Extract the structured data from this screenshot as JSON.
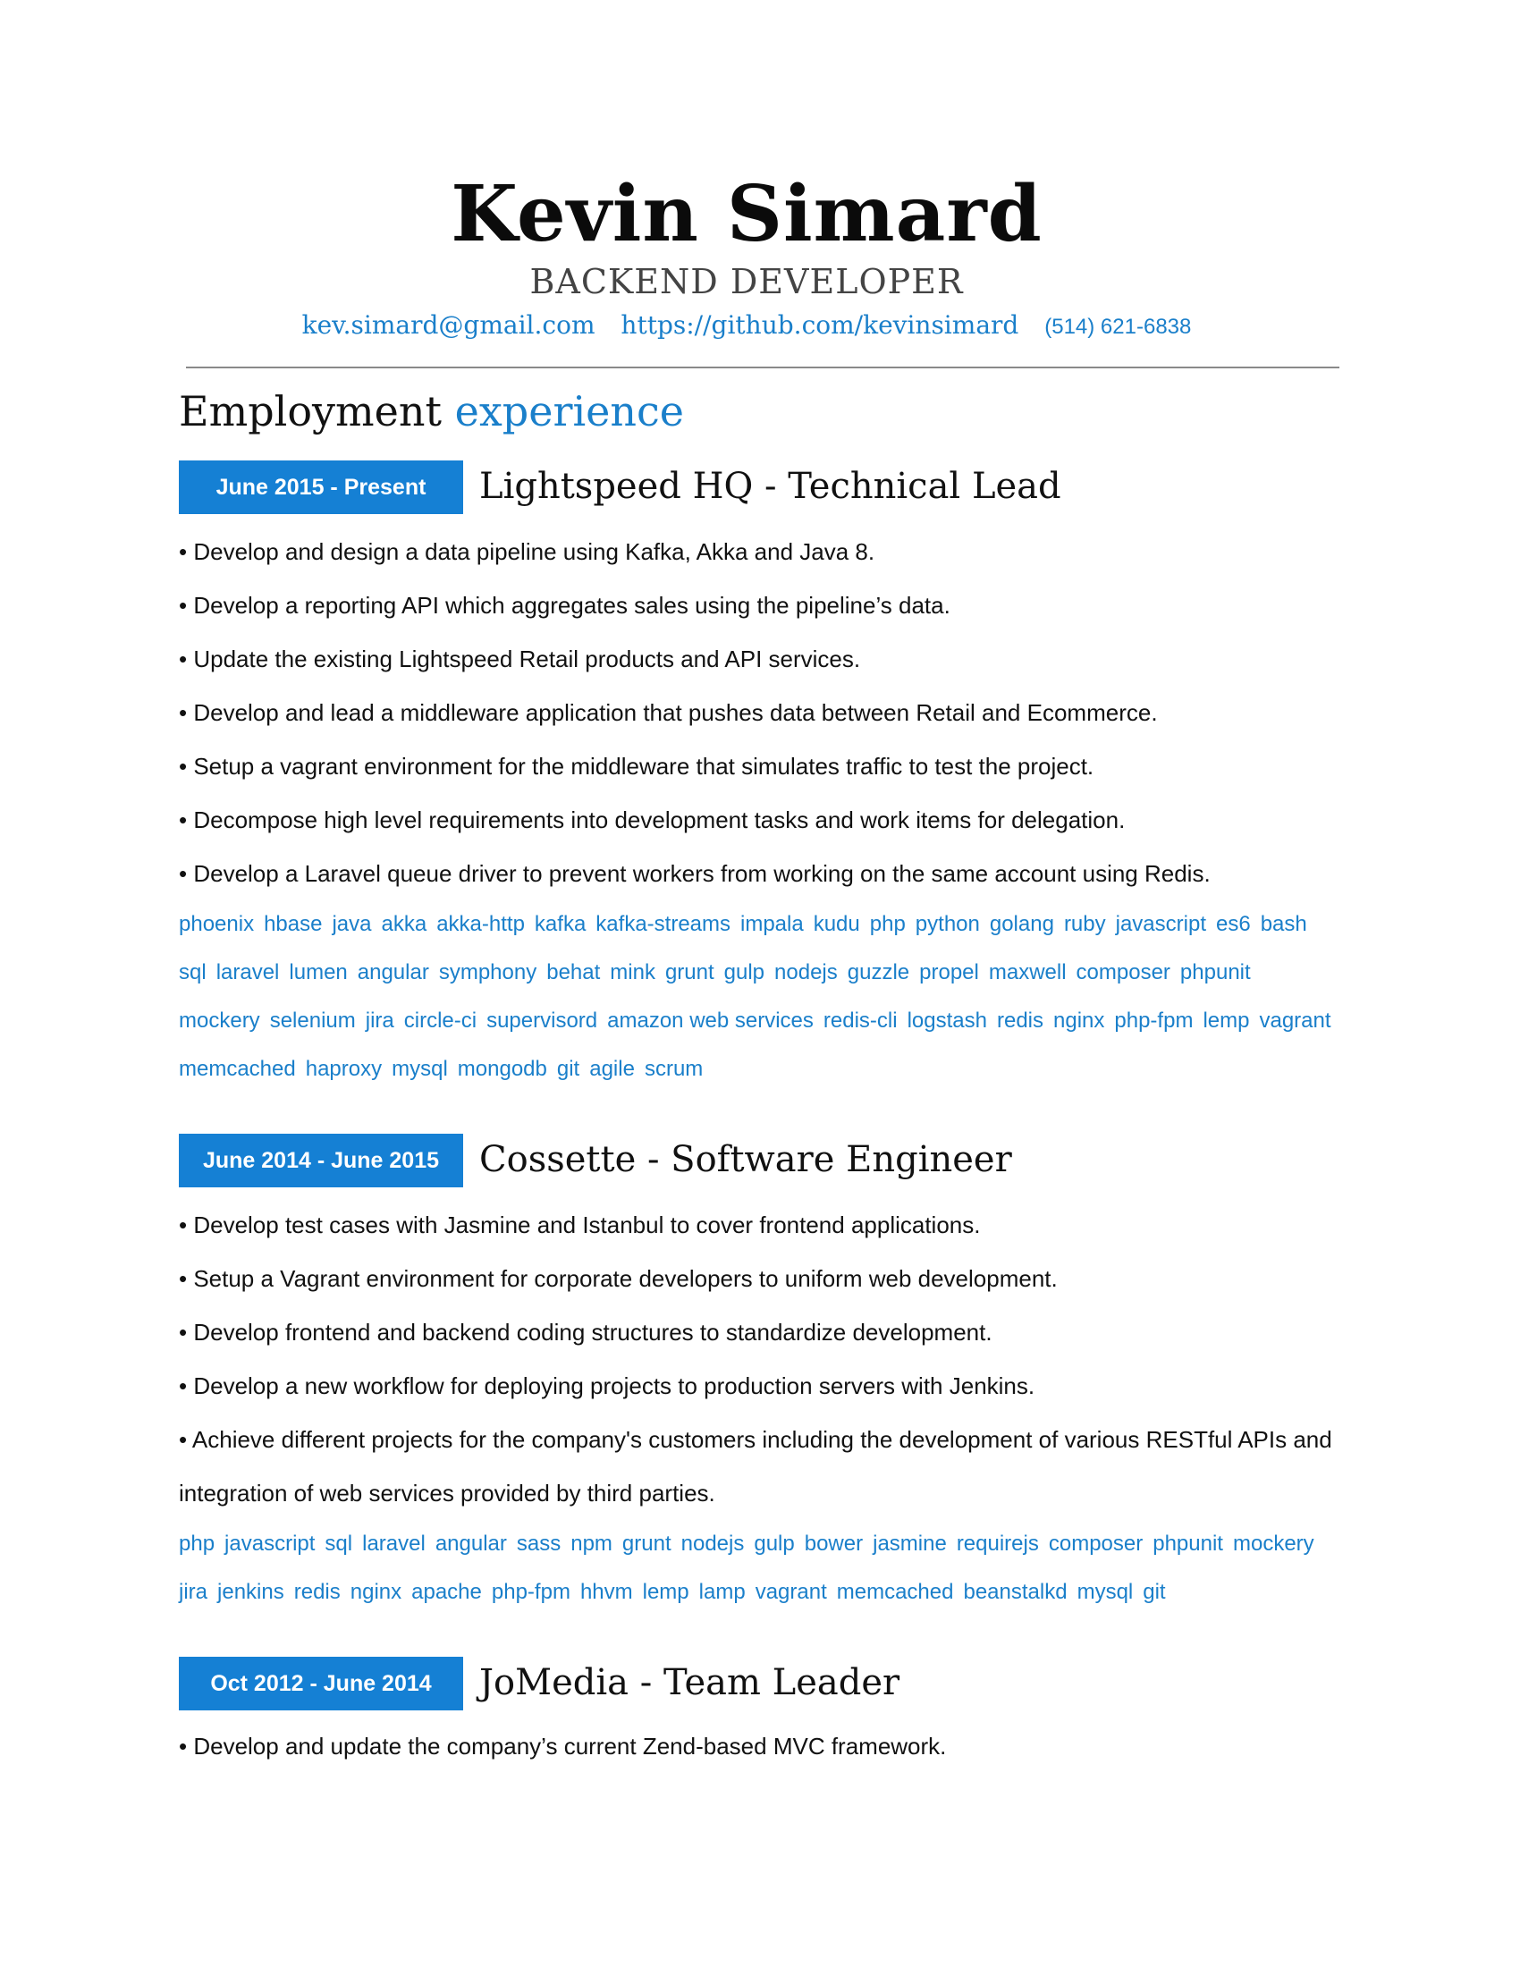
{
  "header": {
    "name": "Kevin Simard",
    "role": "BACKEND DEVELOPER",
    "email": "kev.simard@gmail.com",
    "github": "https://github.com/kevinsimard",
    "phone": "(514) 621-6838"
  },
  "section": {
    "title_plain": "Employment",
    "title_accent": "experience"
  },
  "colors": {
    "accent": "#1a7fca",
    "badge": "#1580d4",
    "divider": "#8a8a8a"
  },
  "jobs": [
    {
      "dates": "June 2015 - Present",
      "title": "Lightspeed HQ - Technical Lead",
      "bullets": [
        "• Develop and design a data pipeline using Kafka, Akka and Java 8.",
        "• Develop a reporting API which aggregates sales using the pipeline’s data.",
        "• Update the existing Lightspeed Retail products and API services.",
        "• Develop and lead a middleware application that pushes data between Retail and Ecommerce.",
        "• Setup a vagrant environment for the middleware that simulates traffic to test the project.",
        "• Decompose high level requirements into development tasks and work items for delegation.",
        "• Develop a Laravel queue driver to prevent workers from working on the same account using Redis."
      ],
      "tags": [
        "phoenix",
        "hbase",
        "java",
        "akka",
        "akka-http",
        "kafka",
        "kafka-streams",
        "impala",
        "kudu",
        "php",
        "python",
        "golang",
        "ruby",
        "javascript",
        "es6",
        "bash",
        "sql",
        "laravel",
        "lumen",
        "angular",
        "symphony",
        "behat",
        "mink",
        "grunt",
        "gulp",
        "nodejs",
        "guzzle",
        "propel",
        "maxwell",
        "composer",
        "phpunit",
        "mockery",
        "selenium",
        "jira",
        "circle-ci",
        "supervisord",
        "amazon web services",
        "redis-cli",
        "logstash",
        "redis",
        "nginx",
        "php-fpm",
        "lemp",
        "vagrant",
        "memcached",
        "haproxy",
        "mysql",
        "mongodb",
        "git",
        "agile",
        "scrum"
      ]
    },
    {
      "dates": "June 2014 - June 2015",
      "title": "Cossette - Software Engineer",
      "bullets": [
        "• Develop test cases with Jasmine and Istanbul to cover frontend applications.",
        "• Setup a Vagrant environment for corporate developers to uniform web development.",
        "• Develop frontend and backend coding structures to standardize development.",
        "• Develop a new workflow for deploying projects to production servers with Jenkins.",
        "• Achieve different projects for the company's customers including the development of various RESTful APIs and",
        "integration of web services provided by third parties."
      ],
      "tags": [
        "php",
        "javascript",
        "sql",
        "laravel",
        "angular",
        "sass",
        "npm",
        "grunt",
        "nodejs",
        "gulp",
        "bower",
        "jasmine",
        "requirejs",
        "composer",
        "phpunit",
        "mockery",
        "jira",
        "jenkins",
        "redis",
        "nginx",
        "apache",
        "php-fpm",
        "hhvm",
        "lemp",
        "lamp",
        "vagrant",
        "memcached",
        "beanstalkd",
        "mysql",
        "git"
      ]
    },
    {
      "dates": "Oct 2012 - June 2014",
      "title": "JoMedia - Team Leader",
      "bullets": [
        "• Develop and update the company’s current Zend-based MVC framework."
      ],
      "tags": []
    }
  ]
}
